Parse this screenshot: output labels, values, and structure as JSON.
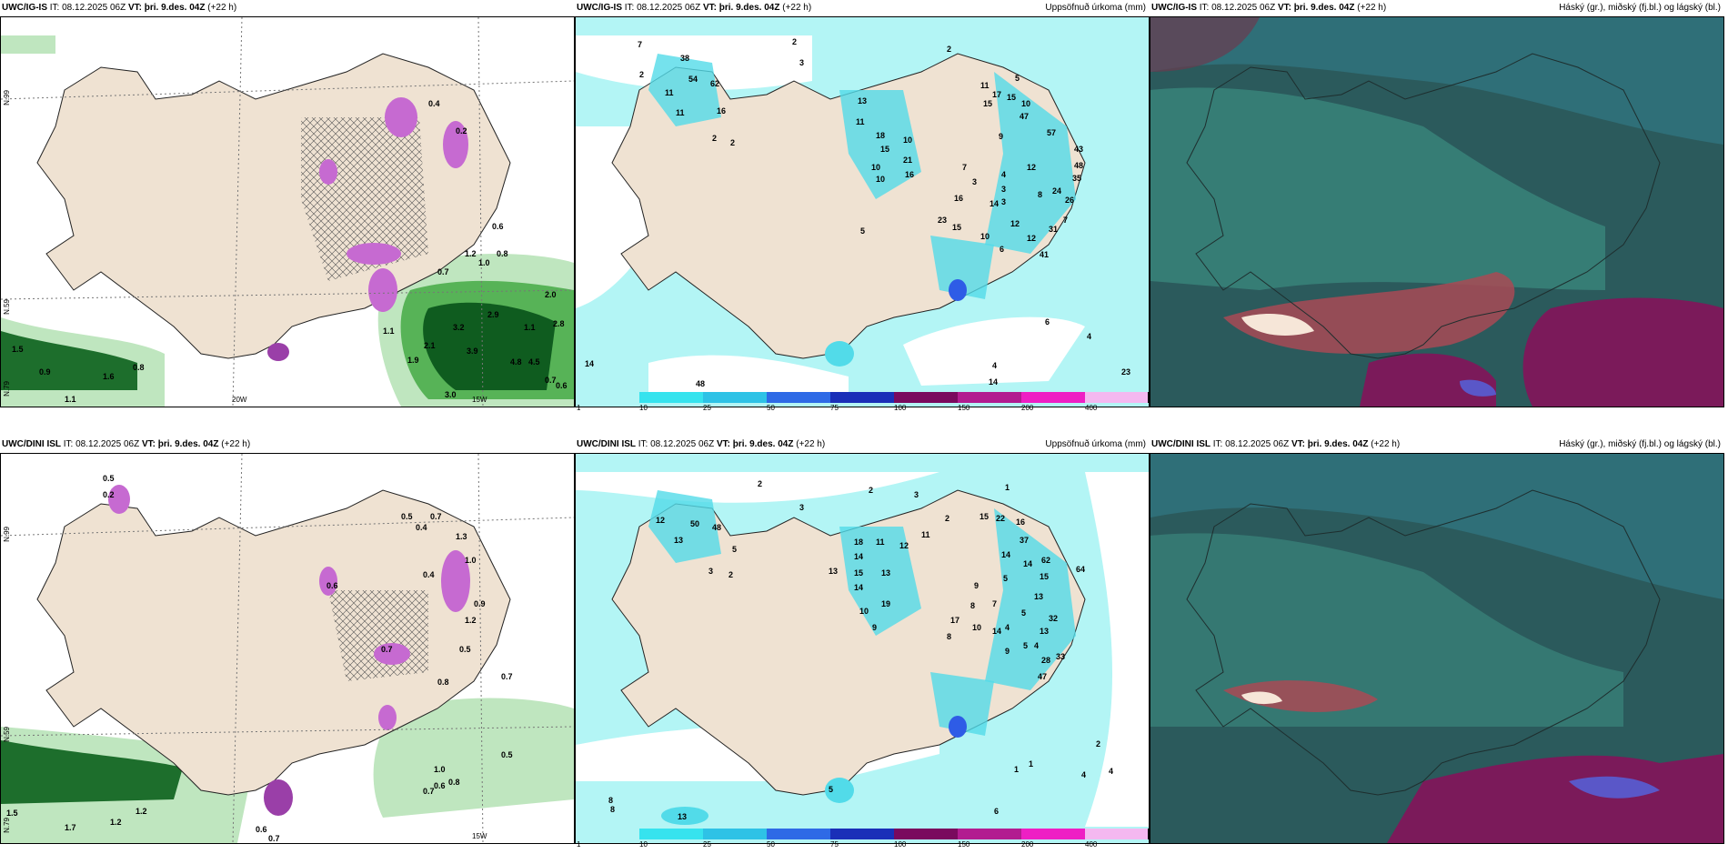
{
  "colors": {
    "land": "#efe2d2",
    "sea": "#ffffff",
    "green_light": "#bfe6bf",
    "green_mid": "#57b357",
    "green_dark": "#0f5c1f",
    "purple": "#c66ad1",
    "cyan_light": "#b3f5f5",
    "cyan": "#52dbe9",
    "cloud_dark": "#2b5a5c",
    "cloud_teal": "#3c8c80",
    "cloud_red": "#a84a55",
    "cloud_violet": "#7b1a5a"
  },
  "panels": [
    {
      "model": "UWC/IG-IS",
      "it_prefix": "IT:",
      "it_value": "08.12.2025 06Z",
      "vt_prefix": "VT:",
      "vt_value": "þri. 9.des. 04Z",
      "lead": "(+22 h)",
      "right_title": "",
      "axis_labels": [
        "N.99",
        "N.59",
        "N.79",
        "20W",
        "15W"
      ],
      "map_labels": [
        "0.4",
        "0.2",
        "0.6",
        "0.8",
        "1.0",
        "1.2",
        "0.7",
        "1.1",
        "3.2",
        "2.9",
        "2.1",
        "3.9",
        "1.9",
        "4.8",
        "4.5",
        "1.6",
        "0.9",
        "1.5",
        "1.1",
        "0.8",
        "3.0",
        "2.8",
        "2.0",
        "0.6",
        "1.1",
        "0.7"
      ]
    },
    {
      "model": "UWC/IG-IS",
      "it_prefix": "IT:",
      "it_value": "08.12.2025 06Z",
      "vt_prefix": "VT:",
      "vt_value": "þri. 9.des. 04Z",
      "lead": "(+22 h)",
      "right_title": "Uppsöfnuð úrkoma (mm)",
      "map_labels": [
        "7",
        "2",
        "2",
        "3",
        "2",
        "38",
        "54",
        "62",
        "11",
        "16",
        "11",
        "2",
        "2",
        "13",
        "11",
        "18",
        "15",
        "10",
        "10",
        "10",
        "21",
        "16",
        "11",
        "17",
        "15",
        "15",
        "10",
        "5",
        "47",
        "57",
        "9",
        "43",
        "48",
        "35",
        "26",
        "24",
        "12",
        "7",
        "3",
        "8",
        "4",
        "3",
        "3",
        "14",
        "16",
        "23",
        "5",
        "15",
        "10",
        "12",
        "41",
        "12",
        "31",
        "7",
        "6",
        "6",
        "4",
        "4",
        "14",
        "23",
        "14",
        "48"
      ],
      "colorbar": [
        "1",
        "10",
        "25",
        "50",
        "75",
        "100",
        "150",
        "200",
        "400"
      ]
    },
    {
      "model": "UWC/IG-IS",
      "it_prefix": "IT:",
      "it_value": "08.12.2025 06Z",
      "vt_prefix": "VT:",
      "vt_value": "þri. 9.des. 04Z",
      "lead": "(+22 h)",
      "right_title": "Háský (gr.), miðský (fj.bl.) og lágský (bl.)"
    },
    {
      "model": "UWC/DINI ISL",
      "it_prefix": "IT:",
      "it_value": "08.12.2025 06Z",
      "vt_prefix": "VT:",
      "vt_value": "þri. 9.des. 04Z",
      "lead": "(+22 h)",
      "right_title": "",
      "axis_labels": [
        "N.99",
        "N.59",
        "N.79",
        "15W"
      ],
      "map_labels": [
        "0.5",
        "0.2",
        "0.5",
        "0.7",
        "0.4",
        "1.3",
        "0.6",
        "1.0",
        "0.9",
        "0.4",
        "0.5",
        "1.2",
        "0.7",
        "0.8",
        "0.7",
        "1.0",
        "0.5",
        "0.6",
        "0.8",
        "0.7",
        "1.5",
        "1.2",
        "1.2",
        "1.7",
        "0.7",
        "0.6"
      ]
    },
    {
      "model": "UWC/DINI ISL",
      "it_prefix": "IT:",
      "it_value": "08.12.2025 06Z",
      "vt_prefix": "VT:",
      "vt_value": "þri. 9.des. 04Z",
      "lead": "(+22 h)",
      "right_title": "Uppsöfnuð úrkoma (mm)",
      "map_labels": [
        "2",
        "2",
        "3",
        "3",
        "1",
        "2",
        "12",
        "13",
        "50",
        "48",
        "3",
        "2",
        "5",
        "18",
        "14",
        "13",
        "15",
        "14",
        "11",
        "13",
        "12",
        "11",
        "19",
        "10",
        "9",
        "15",
        "22",
        "16",
        "37",
        "14",
        "14",
        "15",
        "62",
        "64",
        "9",
        "8",
        "7",
        "5",
        "13",
        "5",
        "17",
        "8",
        "32",
        "4",
        "10",
        "14",
        "9",
        "5",
        "4",
        "13",
        "28",
        "33",
        "47",
        "2",
        "1",
        "1",
        "4",
        "4",
        "8",
        "8",
        "13",
        "6",
        "5"
      ],
      "colorbar": [
        "1",
        "10",
        "25",
        "50",
        "75",
        "100",
        "150",
        "200",
        "400"
      ]
    },
    {
      "model": "UWC/DINI ISL",
      "it_prefix": "IT:",
      "it_value": "08.12.2025 06Z",
      "vt_prefix": "VT:",
      "vt_value": "þri. 9.des. 04Z",
      "lead": "(+22 h)",
      "right_title": "Háský (gr.), miðský (fj.bl.) og lágský (bl.)"
    }
  ]
}
